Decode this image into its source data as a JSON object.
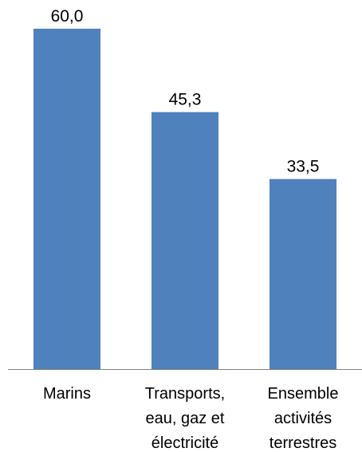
{
  "chart_data": {
    "type": "bar",
    "categories": [
      [
        "Marins"
      ],
      [
        "Transports,",
        "eau, gaz et",
        "électricité"
      ],
      [
        "Ensemble",
        "activités",
        "terrestres"
      ]
    ],
    "values": [
      60.0,
      45.3,
      33.5
    ],
    "data_labels": [
      "60,0",
      "45,3",
      "33,5"
    ],
    "title": "",
    "xlabel": "",
    "ylabel": "",
    "ylim": [
      0,
      60.0
    ],
    "grid": false,
    "legend": "none",
    "colors": {
      "bar": "#4f81bd",
      "axis": "#808080"
    }
  }
}
